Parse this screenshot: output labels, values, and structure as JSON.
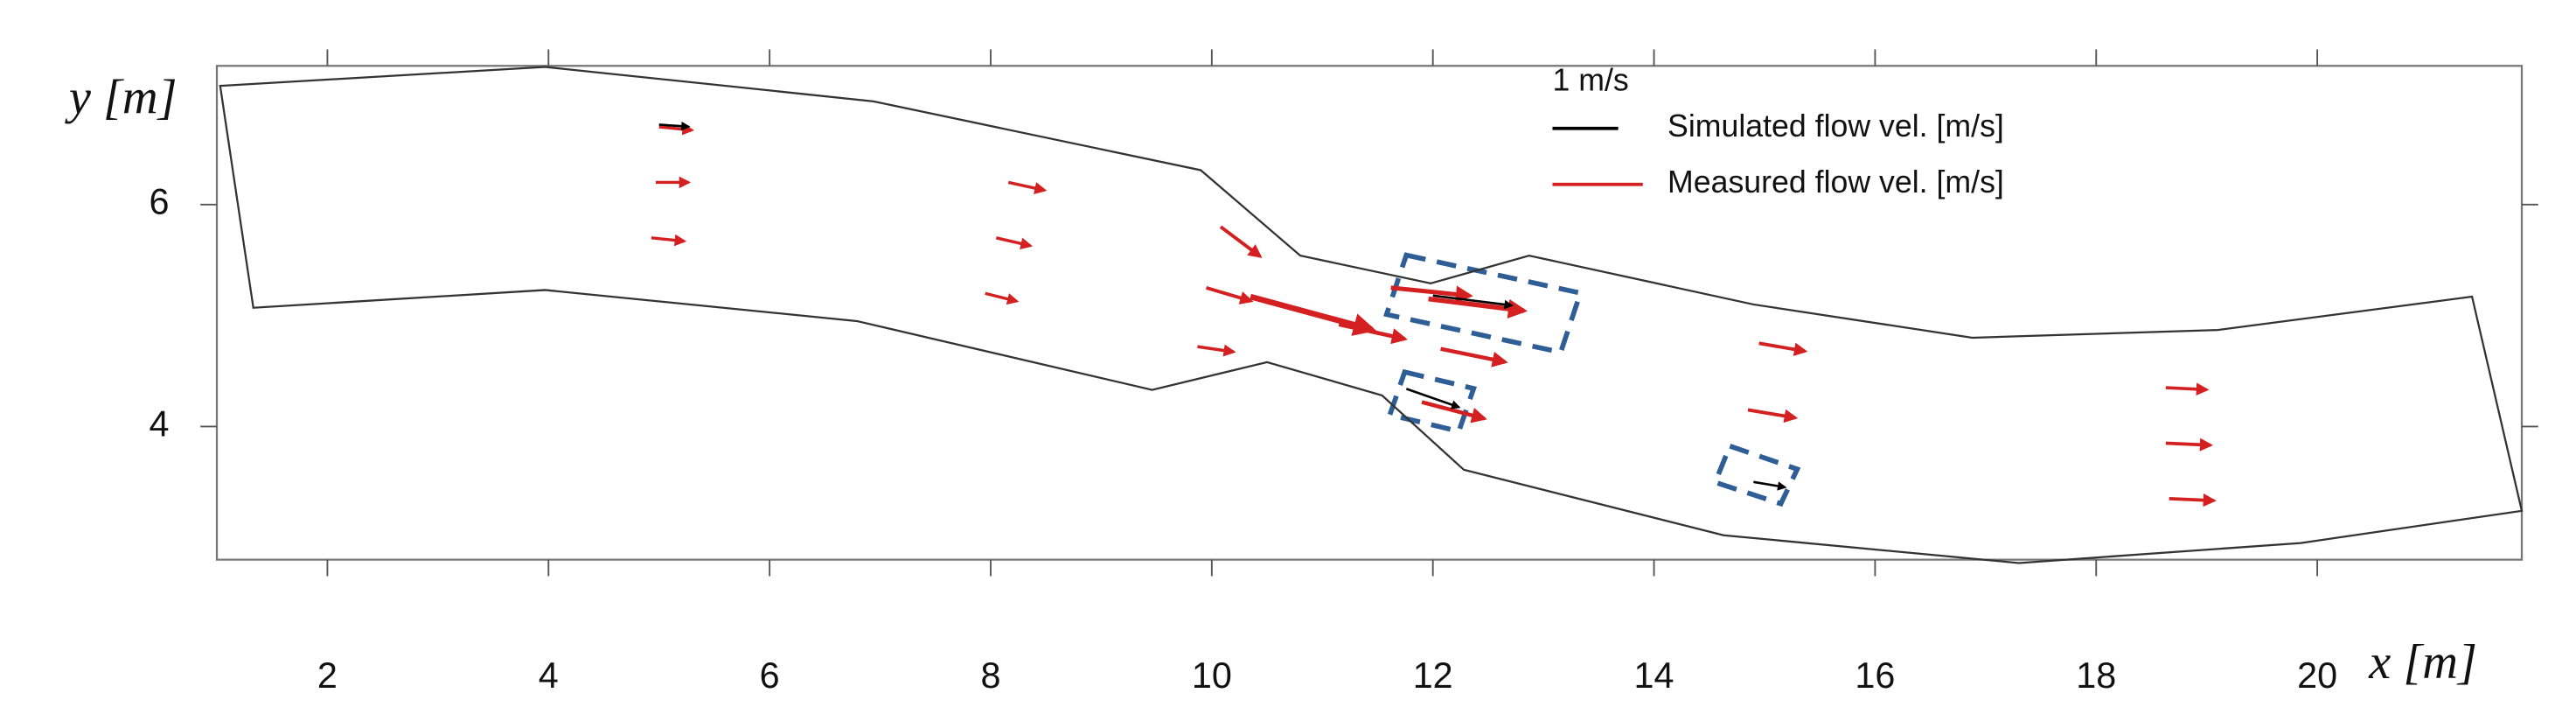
{
  "chart_data": {
    "type": "quiver",
    "x_label": "x [m]",
    "y_label": "y [m]",
    "xlim": [
      1,
      21.85
    ],
    "ylim": [
      2.8,
      7.25
    ],
    "xticks": [
      2,
      4,
      6,
      8,
      10,
      12,
      14,
      16,
      18,
      20
    ],
    "yticks": [
      4,
      6
    ],
    "quiver_key": {
      "value": 1,
      "label": "1 m/s"
    },
    "boundary": {
      "x": [
        1.03,
        3.97,
        6.94,
        9.9,
        10.8,
        11.98,
        12.87,
        14.9,
        16.88,
        19.1,
        21.4,
        21.85,
        19.85,
        17.3,
        14.63,
        12.28,
        11.54,
        10.5,
        9.46,
        6.79,
        3.97,
        1.33
      ],
      "y": [
        7.07,
        7.24,
        6.93,
        6.31,
        5.54,
        5.29,
        5.54,
        5.1,
        4.8,
        4.87,
        5.17,
        3.24,
        2.95,
        2.77,
        3.02,
        3.61,
        4.28,
        4.58,
        4.33,
        4.95,
        5.23,
        5.07
      ]
    },
    "series": [
      {
        "name": "Simulated flow vel. [m/s]",
        "color": "#000000",
        "x": [
          5.0,
          11.76,
          14.9,
          12.0
        ],
        "y": [
          6.72,
          4.34,
          3.5,
          5.18
        ],
        "u": [
          0.45,
          0.8,
          0.48,
          1.2
        ],
        "v": [
          -0.03,
          -0.28,
          -0.08,
          -0.15
        ]
      },
      {
        "name": "Measured flow vel. [m/s]",
        "color": "#d42020",
        "x": [
          5.0,
          4.97,
          4.93,
          8.16,
          8.05,
          7.95,
          10.08,
          9.95,
          9.87,
          10.35,
          11.15,
          11.62,
          11.96,
          12.07,
          11.9,
          14.95,
          14.85,
          18.63,
          18.63,
          18.66
        ],
        "y": [
          6.7,
          6.2,
          5.7,
          6.2,
          5.7,
          5.2,
          5.8,
          5.25,
          4.72,
          5.17,
          4.92,
          5.25,
          5.15,
          4.7,
          4.22,
          4.75,
          4.15,
          4.35,
          3.85,
          3.35
        ],
        "u": [
          0.5,
          0.5,
          0.5,
          0.55,
          0.52,
          0.48,
          0.6,
          0.68,
          0.55,
          1.85,
          1.0,
          1.2,
          1.45,
          0.98,
          0.95,
          0.7,
          0.72,
          0.62,
          0.68,
          0.68
        ],
        "v": [
          -0.05,
          0,
          -0.05,
          -0.12,
          -0.12,
          -0.12,
          -0.45,
          -0.2,
          -0.08,
          -0.5,
          -0.22,
          -0.12,
          -0.18,
          -0.2,
          -0.25,
          -0.12,
          -0.12,
          -0.03,
          -0.03,
          -0.03
        ]
      }
    ]
  }
}
